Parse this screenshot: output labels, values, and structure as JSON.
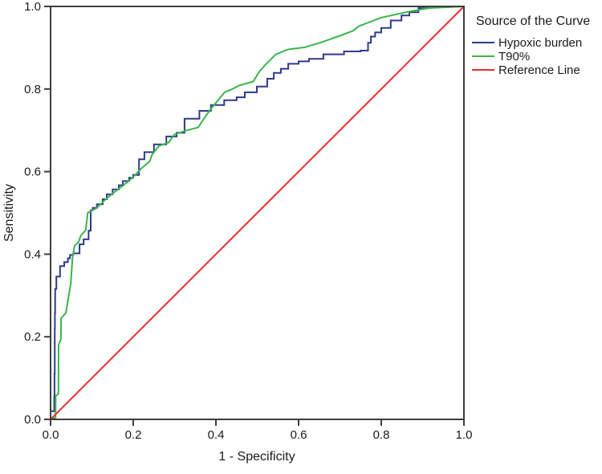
{
  "chart_data": {
    "type": "line",
    "subtype": "roc-curve",
    "title": "",
    "legend_title": "Source of the Curve",
    "xlabel": "1 - Specificity",
    "ylabel": "Sensitivity",
    "xlim": [
      0.0,
      1.0
    ],
    "ylim": [
      0.0,
      1.0
    ],
    "x_ticks": [
      "0.0",
      "0.2",
      "0.4",
      "0.6",
      "0.8",
      "1.0"
    ],
    "y_ticks": [
      "0.0",
      "0.2",
      "0.4",
      "0.6",
      "0.8",
      "1.0"
    ],
    "grid": false,
    "legend_position": "right-top",
    "colors": {
      "frame": "#3d3d3d",
      "text": "#1a1a1a",
      "background": "#ffffff"
    },
    "series": [
      {
        "name": "Hypoxic burden",
        "color": "#2e3a8c",
        "interp": "step",
        "points": [
          [
            0.0,
            0.0
          ],
          [
            0.009,
            0.02
          ],
          [
            0.0095,
            0.055
          ],
          [
            0.01,
            0.11
          ],
          [
            0.0105,
            0.219
          ],
          [
            0.011,
            0.258
          ],
          [
            0.014,
            0.316
          ],
          [
            0.023,
            0.346
          ],
          [
            0.033,
            0.371
          ],
          [
            0.042,
            0.381
          ],
          [
            0.047,
            0.39
          ],
          [
            0.055,
            0.398
          ],
          [
            0.07,
            0.402
          ],
          [
            0.08,
            0.424
          ],
          [
            0.092,
            0.436
          ],
          [
            0.097,
            0.457
          ],
          [
            0.102,
            0.506
          ],
          [
            0.112,
            0.512
          ],
          [
            0.126,
            0.521
          ],
          [
            0.136,
            0.533
          ],
          [
            0.15,
            0.545
          ],
          [
            0.165,
            0.557
          ],
          [
            0.175,
            0.567
          ],
          [
            0.19,
            0.577
          ],
          [
            0.2,
            0.585
          ],
          [
            0.214,
            0.592
          ],
          [
            0.227,
            0.63
          ],
          [
            0.25,
            0.647
          ],
          [
            0.28,
            0.666
          ],
          [
            0.305,
            0.685
          ],
          [
            0.324,
            0.694
          ],
          [
            0.36,
            0.728
          ],
          [
            0.388,
            0.747
          ],
          [
            0.42,
            0.761
          ],
          [
            0.45,
            0.773
          ],
          [
            0.47,
            0.78
          ],
          [
            0.499,
            0.792
          ],
          [
            0.524,
            0.806
          ],
          [
            0.54,
            0.825
          ],
          [
            0.557,
            0.839
          ],
          [
            0.575,
            0.849
          ],
          [
            0.6,
            0.861
          ],
          [
            0.625,
            0.867
          ],
          [
            0.66,
            0.873
          ],
          [
            0.71,
            0.884
          ],
          [
            0.75,
            0.891
          ],
          [
            0.768,
            0.893
          ],
          [
            0.775,
            0.912
          ],
          [
            0.785,
            0.927
          ],
          [
            0.8,
            0.937
          ],
          [
            0.823,
            0.948
          ],
          [
            0.849,
            0.966
          ],
          [
            0.868,
            0.978
          ],
          [
            0.89,
            0.986
          ],
          [
            0.913,
            0.996
          ],
          [
            1.0,
            1.0
          ]
        ]
      },
      {
        "name": "T90%",
        "color": "#3ab54a",
        "interp": "linear",
        "points": [
          [
            0.0,
            0.0
          ],
          [
            0.012,
            0.004
          ],
          [
            0.0125,
            0.057
          ],
          [
            0.019,
            0.062
          ],
          [
            0.0195,
            0.18
          ],
          [
            0.025,
            0.195
          ],
          [
            0.0255,
            0.245
          ],
          [
            0.03,
            0.25
          ],
          [
            0.037,
            0.258
          ],
          [
            0.044,
            0.3
          ],
          [
            0.049,
            0.33
          ],
          [
            0.053,
            0.39
          ],
          [
            0.058,
            0.42
          ],
          [
            0.068,
            0.43
          ],
          [
            0.073,
            0.445
          ],
          [
            0.085,
            0.458
          ],
          [
            0.09,
            0.5
          ],
          [
            0.112,
            0.512
          ],
          [
            0.13,
            0.53
          ],
          [
            0.15,
            0.547
          ],
          [
            0.17,
            0.562
          ],
          [
            0.19,
            0.578
          ],
          [
            0.205,
            0.592
          ],
          [
            0.22,
            0.608
          ],
          [
            0.24,
            0.625
          ],
          [
            0.245,
            0.64
          ],
          [
            0.262,
            0.662
          ],
          [
            0.285,
            0.67
          ],
          [
            0.3,
            0.69
          ],
          [
            0.33,
            0.7
          ],
          [
            0.357,
            0.707
          ],
          [
            0.37,
            0.727
          ],
          [
            0.385,
            0.748
          ],
          [
            0.405,
            0.773
          ],
          [
            0.421,
            0.792
          ],
          [
            0.44,
            0.8
          ],
          [
            0.455,
            0.808
          ],
          [
            0.49,
            0.818
          ],
          [
            0.505,
            0.842
          ],
          [
            0.518,
            0.857
          ],
          [
            0.545,
            0.884
          ],
          [
            0.575,
            0.896
          ],
          [
            0.615,
            0.901
          ],
          [
            0.655,
            0.913
          ],
          [
            0.7,
            0.929
          ],
          [
            0.732,
            0.941
          ],
          [
            0.745,
            0.952
          ],
          [
            0.8,
            0.973
          ],
          [
            0.86,
            0.986
          ],
          [
            0.913,
            0.996
          ],
          [
            1.0,
            1.0
          ]
        ]
      },
      {
        "name": "Reference Line",
        "color": "#ee2c2e",
        "interp": "linear",
        "points": [
          [
            0.0,
            0.0
          ],
          [
            1.0,
            1.0
          ]
        ]
      }
    ]
  }
}
